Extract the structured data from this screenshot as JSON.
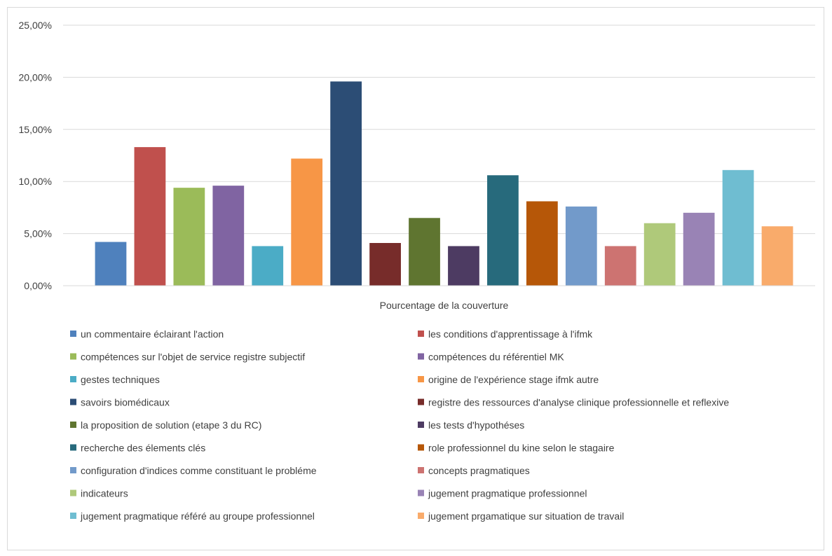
{
  "chart_data": {
    "type": "bar",
    "categories": [
      "Pourcentage de la couverture"
    ],
    "xlabel": "Pourcentage de la couverture",
    "ylabel": "",
    "ylim": [
      0,
      25
    ],
    "yticks": [
      "0,00%",
      "5,00%",
      "10,00%",
      "15,00%",
      "20,00%",
      "25,00%"
    ],
    "grid": true,
    "legend_position": "bottom",
    "series": [
      {
        "name": "un commentaire éclairant l'action",
        "values": [
          4.2
        ],
        "color": "#4F81BD"
      },
      {
        "name": "les conditions d'apprentissage à l'ifmk",
        "values": [
          13.3
        ],
        "color": "#C0504D"
      },
      {
        "name": "compétences sur l'objet de service registre subjectif",
        "values": [
          9.4
        ],
        "color": "#9BBB59"
      },
      {
        "name": "compétences du référentiel MK",
        "values": [
          9.6
        ],
        "color": "#8064A2"
      },
      {
        "name": "gestes techniques",
        "values": [
          3.8
        ],
        "color": "#4BACC6"
      },
      {
        "name": "origine de l'expérience  stage  ifmk autre",
        "values": [
          12.2
        ],
        "color": "#F79646"
      },
      {
        "name": "savoirs biomédicaux",
        "values": [
          19.6
        ],
        "color": "#2C4D75"
      },
      {
        "name": "registre des ressources d'analyse clinique professionnelle et reflexive",
        "values": [
          4.1
        ],
        "color": "#772C2A"
      },
      {
        "name": "la proposition de solution (etape 3 du RC)",
        "values": [
          6.5
        ],
        "color": "#5F7530"
      },
      {
        "name": "les tests d'hypothéses",
        "values": [
          3.8
        ],
        "color": "#4D3B62"
      },
      {
        "name": "recherche des élements clés",
        "values": [
          10.6
        ],
        "color": "#276A7C"
      },
      {
        "name": "role professionnel du kine selon le stagaire",
        "values": [
          8.1
        ],
        "color": "#B65708"
      },
      {
        "name": "configuration d'indices comme constituant le probléme",
        "values": [
          7.6
        ],
        "color": "#729ACA"
      },
      {
        "name": "concepts pragmatiques",
        "values": [
          3.8
        ],
        "color": "#CD7371"
      },
      {
        "name": "indicateurs",
        "values": [
          6.0
        ],
        "color": "#AFC97A"
      },
      {
        "name": "jugement pragmatique professionnel",
        "values": [
          7.0
        ],
        "color": "#9983B5"
      },
      {
        "name": "jugement pragmatique référé au groupe professionnel",
        "values": [
          11.1
        ],
        "color": "#6FBDD1"
      },
      {
        "name": "jugement prgamatique sur situation de travail",
        "values": [
          5.7
        ],
        "color": "#F9AB6B"
      }
    ]
  }
}
